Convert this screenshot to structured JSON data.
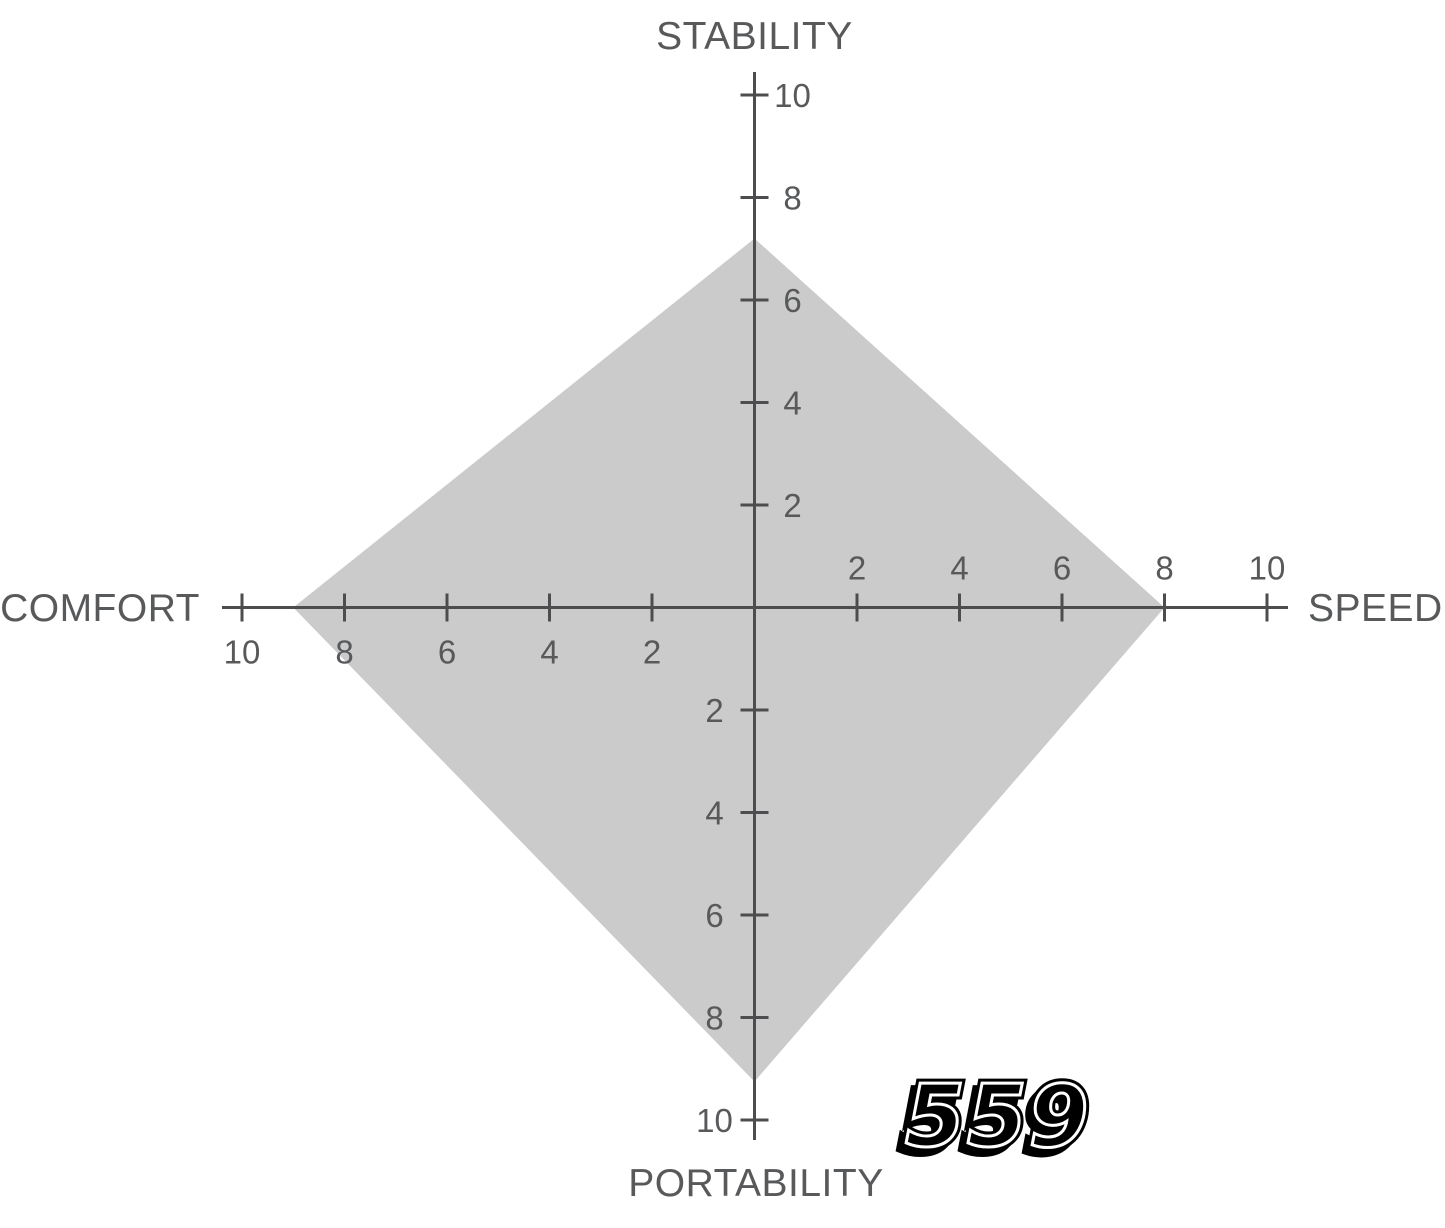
{
  "chart_data": {
    "type": "radar",
    "axes": [
      {
        "label": "STABILITY",
        "direction": "up",
        "value": 7.2
      },
      {
        "label": "SPEED",
        "direction": "right",
        "value": 8
      },
      {
        "label": "PORTABILITY",
        "direction": "down",
        "value": 9.25
      },
      {
        "label": "COMFORT",
        "direction": "left",
        "value": 9
      }
    ],
    "tick_values": [
      2,
      4,
      6,
      8,
      10
    ],
    "axis_range": [
      0,
      10
    ],
    "grid": false,
    "legend": "none",
    "fill_color": "#cbcbcb",
    "axis_color": "#4d4d4f",
    "text_color": "#58595b"
  },
  "logo": {
    "text": "559",
    "color": "#000000",
    "stripe_color": "#ffffff"
  }
}
